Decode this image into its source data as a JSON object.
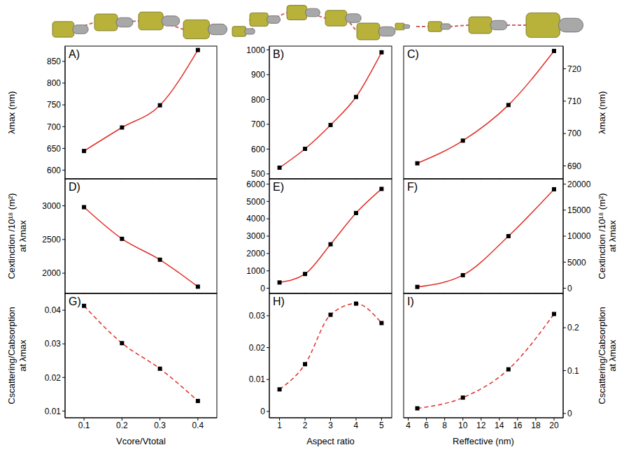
{
  "chart_data": [
    {
      "type": "line",
      "title": "A)",
      "x": [
        0.1,
        0.2,
        0.3,
        0.4
      ],
      "values": [
        644,
        698,
        749,
        876
      ],
      "xlim": [
        0.05,
        0.45
      ],
      "xticks": [
        0.1,
        0.2,
        0.3,
        0.4
      ],
      "ylim": [
        580,
        885
      ],
      "yticks": [
        600,
        650,
        700,
        750,
        800,
        850
      ],
      "ylabel": [
        "λmax (nm)"
      ],
      "tick_labels": "y",
      "color": "#e0302a",
      "marker": "square",
      "line_style": "solid"
    },
    {
      "type": "line",
      "title": "B)",
      "x": [
        1,
        2,
        3,
        4,
        5
      ],
      "values": [
        525,
        601,
        697,
        810,
        990
      ],
      "xlim": [
        0.6,
        5.4
      ],
      "xticks": [
        1,
        2,
        3,
        4,
        5
      ],
      "ylim": [
        480,
        1015
      ],
      "yticks": [
        500,
        600,
        700,
        800,
        900,
        1000
      ],
      "tick_labels": "y",
      "color": "#e0302a",
      "marker": "square",
      "line_style": "solid"
    },
    {
      "type": "line",
      "title": "C)",
      "x": [
        5,
        10,
        15,
        20
      ],
      "values": [
        690.8,
        697.8,
        708.8,
        725.5
      ],
      "xlim": [
        3.5,
        21
      ],
      "xticks": [
        4,
        6,
        8,
        10,
        12,
        14,
        16,
        18,
        20
      ],
      "ylim": [
        686,
        727
      ],
      "yticks": [
        690,
        700,
        710,
        720
      ],
      "ylabel": [
        "λmax (nm)"
      ],
      "tick_labels": "y",
      "color": "#e0302a",
      "marker": "square",
      "line_style": "solid"
    },
    {
      "type": "line",
      "title": "D)",
      "x": [
        0.1,
        0.2,
        0.3,
        0.4
      ],
      "values": [
        2980,
        2510,
        2200,
        1800
      ],
      "xlim": [
        0.05,
        0.45
      ],
      "xticks": [
        0.1,
        0.2,
        0.3,
        0.4
      ],
      "ylim": [
        1700,
        3400
      ],
      "yticks": [
        2000,
        2500,
        3000
      ],
      "ylabel": [
        "Cextinction /10¹⁸ (m²)",
        "at λmax"
      ],
      "tick_labels": "y",
      "color": "#e0302a",
      "marker": "square",
      "line_style": "solid"
    },
    {
      "type": "line",
      "title": "E)",
      "x": [
        1,
        2,
        3,
        4,
        5
      ],
      "values": [
        330,
        820,
        2530,
        4330,
        5720
      ],
      "xlim": [
        0.6,
        5.4
      ],
      "xticks": [
        1,
        2,
        3,
        4,
        5
      ],
      "ylim": [
        -300,
        6300
      ],
      "yticks": [
        0,
        1000,
        2000,
        3000,
        4000,
        5000,
        6000
      ],
      "tick_labels": "y",
      "color": "#e0302a",
      "marker": "square",
      "line_style": "solid"
    },
    {
      "type": "line",
      "title": "F)",
      "x": [
        5,
        10,
        15,
        20
      ],
      "values": [
        250,
        2500,
        10000,
        19000
      ],
      "xlim": [
        3.5,
        21
      ],
      "xticks": [
        4,
        6,
        8,
        10,
        12,
        14,
        16,
        18,
        20
      ],
      "ylim": [
        -1000,
        21000
      ],
      "yticks": [
        0,
        5000,
        10000,
        15000,
        20000
      ],
      "ylabel": [
        "Cextinction /10¹⁸ (m²)",
        "at λmax"
      ],
      "tick_labels": "y",
      "color": "#e0302a",
      "marker": "square",
      "line_style": "solid"
    },
    {
      "type": "line",
      "title": "G)",
      "x": [
        0.1,
        0.2,
        0.3,
        0.4
      ],
      "values": [
        0.0413,
        0.0302,
        0.0226,
        0.013
      ],
      "xlim": [
        0.05,
        0.45
      ],
      "xticks": [
        0.1,
        0.2,
        0.3,
        0.4
      ],
      "ylim": [
        0.008,
        0.045
      ],
      "yticks": [
        0.01,
        0.02,
        0.03,
        0.04
      ],
      "xlabel": "Vcore/Vtotal",
      "ylabel": [
        "Cscattering/Cabsorption",
        "at λmax"
      ],
      "color": "#e0302a",
      "marker": "square",
      "line_style": "dashed"
    },
    {
      "type": "line",
      "title": "H)",
      "x": [
        1,
        2,
        3,
        4,
        5
      ],
      "values": [
        0.0069,
        0.0148,
        0.0303,
        0.0338,
        0.0277
      ],
      "xlim": [
        0.6,
        5.4
      ],
      "xticks": [
        1,
        2,
        3,
        4,
        5
      ],
      "ylim": [
        -0.002,
        0.037
      ],
      "yticks": [
        0,
        0.01,
        0.02,
        0.03
      ],
      "xlabel": "Aspect ratio",
      "color": "#e0302a",
      "marker": "square",
      "line_style": "dashed"
    },
    {
      "type": "line",
      "title": "I)",
      "x": [
        5,
        10,
        15,
        20
      ],
      "values": [
        0.012,
        0.037,
        0.103,
        0.232
      ],
      "xlim": [
        3.5,
        21
      ],
      "xticks": [
        4,
        6,
        8,
        10,
        12,
        14,
        16,
        18,
        20
      ],
      "ylim": [
        -0.01,
        0.28
      ],
      "yticks": [
        0,
        0.1,
        0.2
      ],
      "xlabel": "Reffective (nm)",
      "ylabel": [
        "Cscattering/Cabsorption",
        "at λmax"
      ],
      "color": "#e0302a",
      "marker": "square",
      "line_style": "dashed"
    }
  ]
}
